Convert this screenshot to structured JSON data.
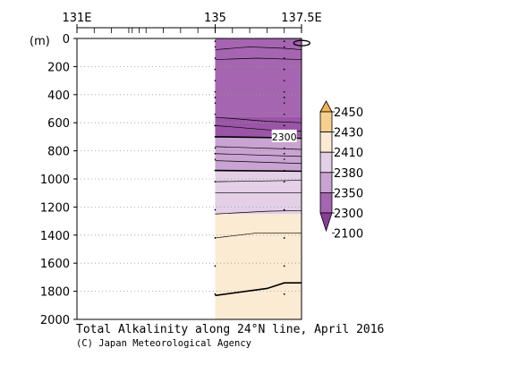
{
  "chart_data": {
    "type": "heatmap",
    "title": "Total Alkalinity along 24°N line, April 2016",
    "credit": "(C) Japan Meteorological Agency",
    "ylabel": "(m)",
    "x_ticks": [
      {
        "value": 131,
        "label": "131E"
      },
      {
        "value": 135,
        "label": "135"
      },
      {
        "value": 137.5,
        "label": "137.5E"
      }
    ],
    "xlim": [
      131,
      137.5
    ],
    "ylim": [
      0,
      2000
    ],
    "y_ticks": [
      0,
      200,
      400,
      600,
      800,
      1000,
      1200,
      1400,
      1600,
      1800,
      2000
    ],
    "data_start_lon": 135,
    "station_lons": [
      135,
      137
    ],
    "colorbar": {
      "labels": [
        "2450",
        "2430",
        "2410",
        "2380",
        "2350",
        "2300",
        "2100"
      ],
      "colors": [
        "#f2b256",
        "#f7d08f",
        "#fbebd3",
        "#e3cfe6",
        "#c9a3d2",
        "#a565b0",
        "#8a3d96"
      ]
    },
    "layers": [
      {
        "top": 0,
        "bottom": 560,
        "color": "#a565b0"
      },
      {
        "top": 560,
        "bottom": 700,
        "color": "#9a55a6"
      },
      {
        "top": 700,
        "bottom": 940,
        "color": "#c9a3d2"
      },
      {
        "top": 940,
        "bottom": 1250,
        "color": "#e3cfe6"
      },
      {
        "top": 1250,
        "bottom": 2000,
        "color": "#fbebd3"
      }
    ],
    "contours": [
      {
        "points": [
          [
            135,
            80
          ],
          [
            136,
            60
          ],
          [
            137,
            70
          ],
          [
            137.5,
            80
          ]
        ],
        "bold": false
      },
      {
        "points": [
          [
            135,
            150
          ],
          [
            136.2,
            140
          ],
          [
            137.5,
            150
          ]
        ],
        "bold": false
      },
      {
        "points": [
          [
            135,
            560
          ],
          [
            136.5,
            590
          ],
          [
            137.5,
            600
          ]
        ],
        "bold": false
      },
      {
        "points": [
          [
            135,
            620
          ],
          [
            136.5,
            650
          ],
          [
            137.5,
            660
          ]
        ],
        "bold": false
      },
      {
        "points": [
          [
            135,
            700
          ],
          [
            136.5,
            705
          ],
          [
            137.5,
            710
          ]
        ],
        "bold": true
      },
      {
        "points": [
          [
            135,
            770
          ],
          [
            137.5,
            790
          ]
        ],
        "bold": false
      },
      {
        "points": [
          [
            135,
            820
          ],
          [
            137.5,
            840
          ]
        ],
        "bold": false
      },
      {
        "points": [
          [
            135,
            870
          ],
          [
            137.5,
            890
          ]
        ],
        "bold": false
      },
      {
        "points": [
          [
            135,
            940
          ],
          [
            137.5,
            945
          ]
        ],
        "bold": true
      },
      {
        "points": [
          [
            135,
            1020
          ],
          [
            137.5,
            1010
          ]
        ],
        "bold": false
      },
      {
        "points": [
          [
            135,
            1100
          ],
          [
            137.5,
            1100
          ]
        ],
        "bold": false
      },
      {
        "points": [
          [
            135,
            1250
          ],
          [
            136.5,
            1230
          ],
          [
            137.5,
            1225
          ]
        ],
        "bold": false
      },
      {
        "points": [
          [
            135,
            1420
          ],
          [
            136.2,
            1385
          ],
          [
            137.5,
            1385
          ]
        ],
        "bold": false
      },
      {
        "points": [
          [
            135,
            1830
          ],
          [
            136.5,
            1780
          ],
          [
            137,
            1740
          ],
          [
            137.5,
            1740
          ]
        ],
        "bold": true
      }
    ],
    "contour_label": {
      "text": "2300",
      "lon": 137,
      "depth": 700
    },
    "top_closed_contour_lon": 137.3,
    "top_closed_contour_depth": 20,
    "grid": true
  }
}
